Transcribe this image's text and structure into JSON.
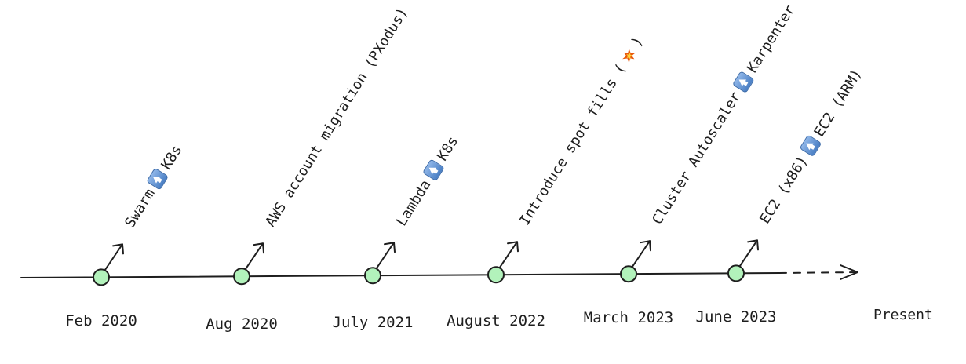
{
  "timeline": {
    "events": [
      {
        "date": "Feb 2020",
        "parts": [
          "Swarm",
          "up-arrow-icon",
          "K8s"
        ]
      },
      {
        "date": "Aug 2020",
        "parts": [
          "AWS account migration (PXodus)"
        ]
      },
      {
        "date": "July 2021",
        "parts": [
          "Lambda",
          "up-arrow-icon",
          "K8s"
        ]
      },
      {
        "date": "August 2022",
        "parts": [
          "Introduce spot fills (",
          "collision-icon",
          ")"
        ]
      },
      {
        "date": "March 2023",
        "parts": [
          "Cluster Autoscaler",
          "up-arrow-icon",
          "Karpenter"
        ]
      },
      {
        "date": "June 2023",
        "parts": [
          "EC2 (x86)",
          "up-arrow-icon",
          "EC2 (ARM)"
        ]
      }
    ],
    "end_label": "Present",
    "colors": {
      "line": "#1e1e1e",
      "node_fill": "#b2f2bb",
      "node_stroke": "#1e1e1e",
      "icon_blue": "#4a7fc4",
      "collision": "#e8590c"
    }
  }
}
